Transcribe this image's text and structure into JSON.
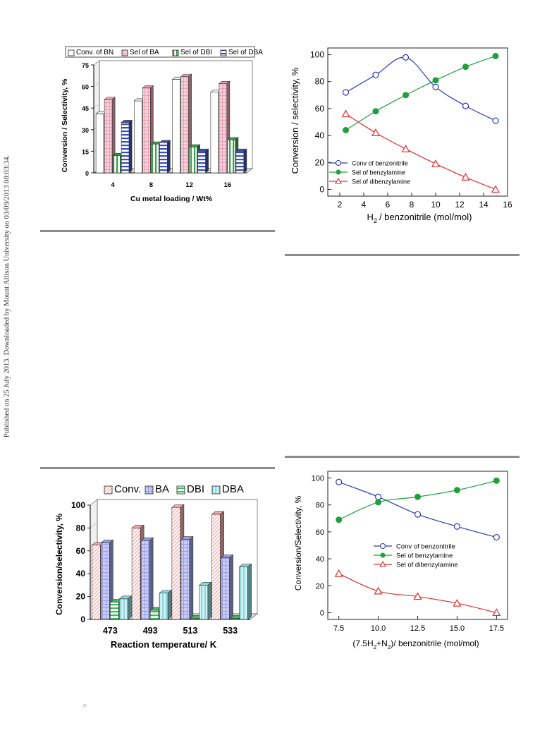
{
  "side_note": "Published on 25 July 2013. Downloaded by Mount Allison University on 03/09/2013 08:03:34.",
  "footer_mark": "○",
  "chart_data": [
    {
      "type": "bar",
      "categories": [
        "4",
        "8",
        "12",
        "16"
      ],
      "series": [
        {
          "name": "Conv. of BN",
          "values": [
            41,
            50,
            65,
            56
          ]
        },
        {
          "name": "Sel of BA",
          "values": [
            51,
            59,
            67,
            62
          ]
        },
        {
          "name": "Sel of DBI",
          "values": [
            12,
            20,
            18,
            23
          ]
        },
        {
          "name": "Sel of DBA",
          "values": [
            35,
            21,
            15,
            15
          ]
        }
      ],
      "xlabel": "Cu metal loading / Wt%",
      "ylabel": "Conversion / Selectivity, %",
      "ylim": [
        0,
        75
      ],
      "yticks": [
        0,
        15,
        30,
        45,
        60,
        75
      ],
      "legend": "top",
      "colors": [
        "#ffffff",
        "#e8a0b4",
        "#3aa04a",
        "#3c50b4"
      ]
    },
    {
      "type": "line",
      "series": [
        {
          "name": "Conv of benzonitrile",
          "x": [
            2.5,
            5,
            7.5,
            10,
            12.5,
            15
          ],
          "values": [
            72,
            85,
            98,
            76,
            62,
            51
          ]
        },
        {
          "name": "Sel of benzylamine",
          "x": [
            2.5,
            5,
            7.5,
            10,
            12.5,
            15
          ],
          "values": [
            44,
            58,
            70,
            81,
            91,
            99
          ]
        },
        {
          "name": "Sel of dibenzylamine",
          "x": [
            2.5,
            5,
            7.5,
            10,
            12.5,
            15
          ],
          "values": [
            56,
            42,
            30,
            19,
            9,
            0
          ]
        }
      ],
      "xlabel_main": "H",
      "xlabel_sub": "2",
      "xlabel_rest": "/ benzonitrile (mol/mol)",
      "ylabel": "Conversion / selectivity, %",
      "xlim": [
        1,
        16
      ],
      "ylim": [
        -5,
        105
      ],
      "xticks": [
        2,
        4,
        6,
        8,
        10,
        12,
        14,
        16
      ],
      "yticks": [
        0,
        20,
        40,
        60,
        80,
        100
      ],
      "legend": "bottom-left",
      "colors": [
        "#2a3ab8",
        "#1ea03c",
        "#e03030"
      ]
    },
    {
      "type": "bar",
      "categories": [
        "473",
        "493",
        "513",
        "533"
      ],
      "series": [
        {
          "name": "Conv.",
          "values": [
            65,
            80,
            98,
            92
          ]
        },
        {
          "name": "BA",
          "values": [
            67,
            69,
            70,
            54
          ]
        },
        {
          "name": "DBI",
          "values": [
            15,
            8,
            1,
            1
          ]
        },
        {
          "name": "DBA",
          "values": [
            18,
            23,
            30,
            46
          ]
        }
      ],
      "xlabel": "Reaction temperature/ K",
      "ylabel": "Conversion/selectivity, %",
      "ylim": [
        0,
        100
      ],
      "yticks": [
        0,
        20,
        40,
        60,
        80,
        100
      ],
      "legend": "top",
      "colors": [
        "#f4a8a8",
        "#9aa0e0",
        "#3cbf5a",
        "#8ed8dc"
      ]
    },
    {
      "type": "line",
      "series": [
        {
          "name": "Conv of benzonitrile",
          "x": [
            7.5,
            10,
            12.5,
            15,
            17.5
          ],
          "values": [
            97,
            86,
            73,
            64,
            56
          ]
        },
        {
          "name": "Sel of benzylamine",
          "x": [
            7.5,
            10,
            12.5,
            15,
            17.5
          ],
          "values": [
            69,
            82,
            86,
            91,
            98
          ]
        },
        {
          "name": "Sel of dibenzylamine",
          "x": [
            7.5,
            10,
            12.5,
            15,
            17.5
          ],
          "values": [
            29,
            16,
            12,
            7,
            0
          ]
        }
      ],
      "xlabel_pre": "(7.5H",
      "xlabel_sub1": "2",
      "xlabel_mid": "+N",
      "xlabel_sub2": "2",
      "xlabel_post": ")/ benzonitrile (mol/mol)",
      "ylabel": "Conversion/Selectivity, %",
      "xlim": [
        6.8,
        18.2
      ],
      "ylim": [
        -5,
        105
      ],
      "xticks": [
        7.5,
        10.0,
        12.5,
        15.0,
        17.5
      ],
      "xtick_labels": [
        "7.5",
        "10.0",
        "12.5",
        "15.0",
        "17.5"
      ],
      "yticks": [
        0,
        20,
        40,
        60,
        80,
        100
      ],
      "legend": "middle-right",
      "colors": [
        "#2a3ab8",
        "#1ea03c",
        "#e03030"
      ]
    }
  ]
}
